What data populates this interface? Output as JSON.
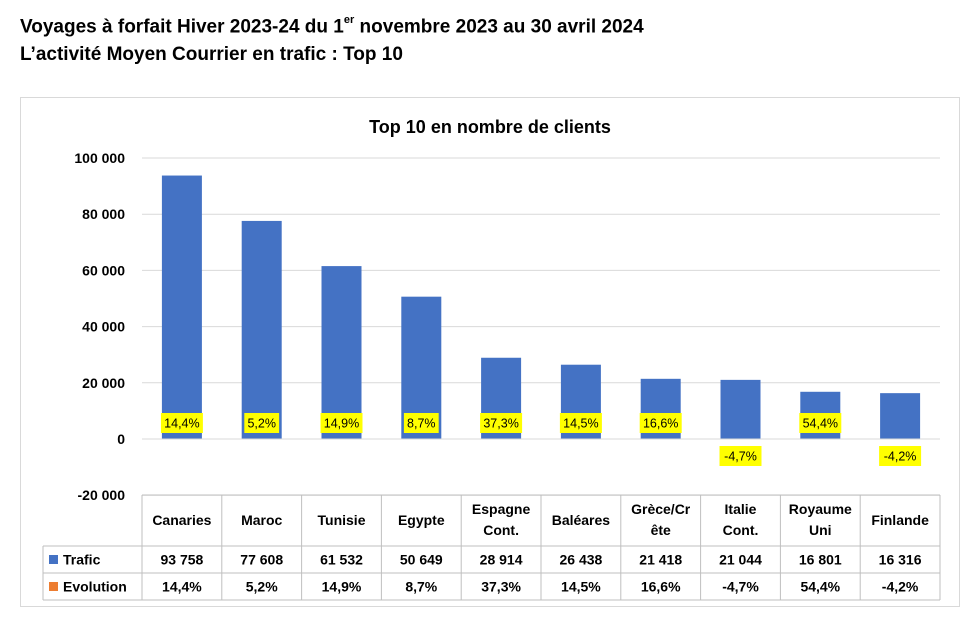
{
  "header": {
    "line1_pre": "Voyages à forfait Hiver 2023-24 du 1",
    "line1_sup": "er",
    "line1_post": " novembre 2023 au 30 avril 2024",
    "line2": "L’activité  Moyen Courrier en trafic : Top 10"
  },
  "chart_data": {
    "type": "bar",
    "title": "Top 10 en nombre de clients",
    "categories": [
      [
        "Canaries"
      ],
      [
        "Maroc"
      ],
      [
        "Tunisie"
      ],
      [
        "Egypte"
      ],
      [
        "Espagne",
        "Cont."
      ],
      [
        "Baléares"
      ],
      [
        "Grèce/Cr",
        "ête"
      ],
      [
        "Italie",
        "Cont."
      ],
      [
        "Royaume",
        "Uni"
      ],
      [
        "Finlande"
      ]
    ],
    "ylim": [
      -20000,
      100000
    ],
    "yticks": [
      -20000,
      0,
      20000,
      40000,
      60000,
      80000,
      100000
    ],
    "ytick_labels": [
      "-20 000",
      "0",
      "20 000",
      "40 000",
      "60 000",
      "80 000",
      "100 000"
    ],
    "grid": true,
    "legend": "in data table",
    "series": [
      {
        "name": "Trafic",
        "color": "#4472C4",
        "values": [
          93758,
          77608,
          61532,
          50649,
          28914,
          26438,
          21418,
          21044,
          16801,
          16316
        ],
        "table_labels": [
          "93 758",
          "77 608",
          "61 532",
          "50 649",
          "28 914",
          "26 438",
          "21 418",
          "21 044",
          "16 801",
          "16 316"
        ]
      },
      {
        "name": "Evolution",
        "color": "#ED7D31",
        "values": [
          14.4,
          5.2,
          14.9,
          8.7,
          37.3,
          14.5,
          16.6,
          -4.7,
          54.4,
          -4.2
        ],
        "table_labels": [
          "14,4%",
          "5,2%",
          "14,9%",
          "8,7%",
          "37,3%",
          "14,5%",
          "16,6%",
          "-4,7%",
          "54,4%",
          "-4,2%"
        ]
      }
    ],
    "data_labels": [
      "14,4%",
      "5,2%",
      "14,9%",
      "8,7%",
      "37,3%",
      "14,5%",
      "16,6%",
      "-4,7%",
      "54,4%",
      "-4,2%"
    ],
    "data_label_highlight": "#FFFF00"
  }
}
